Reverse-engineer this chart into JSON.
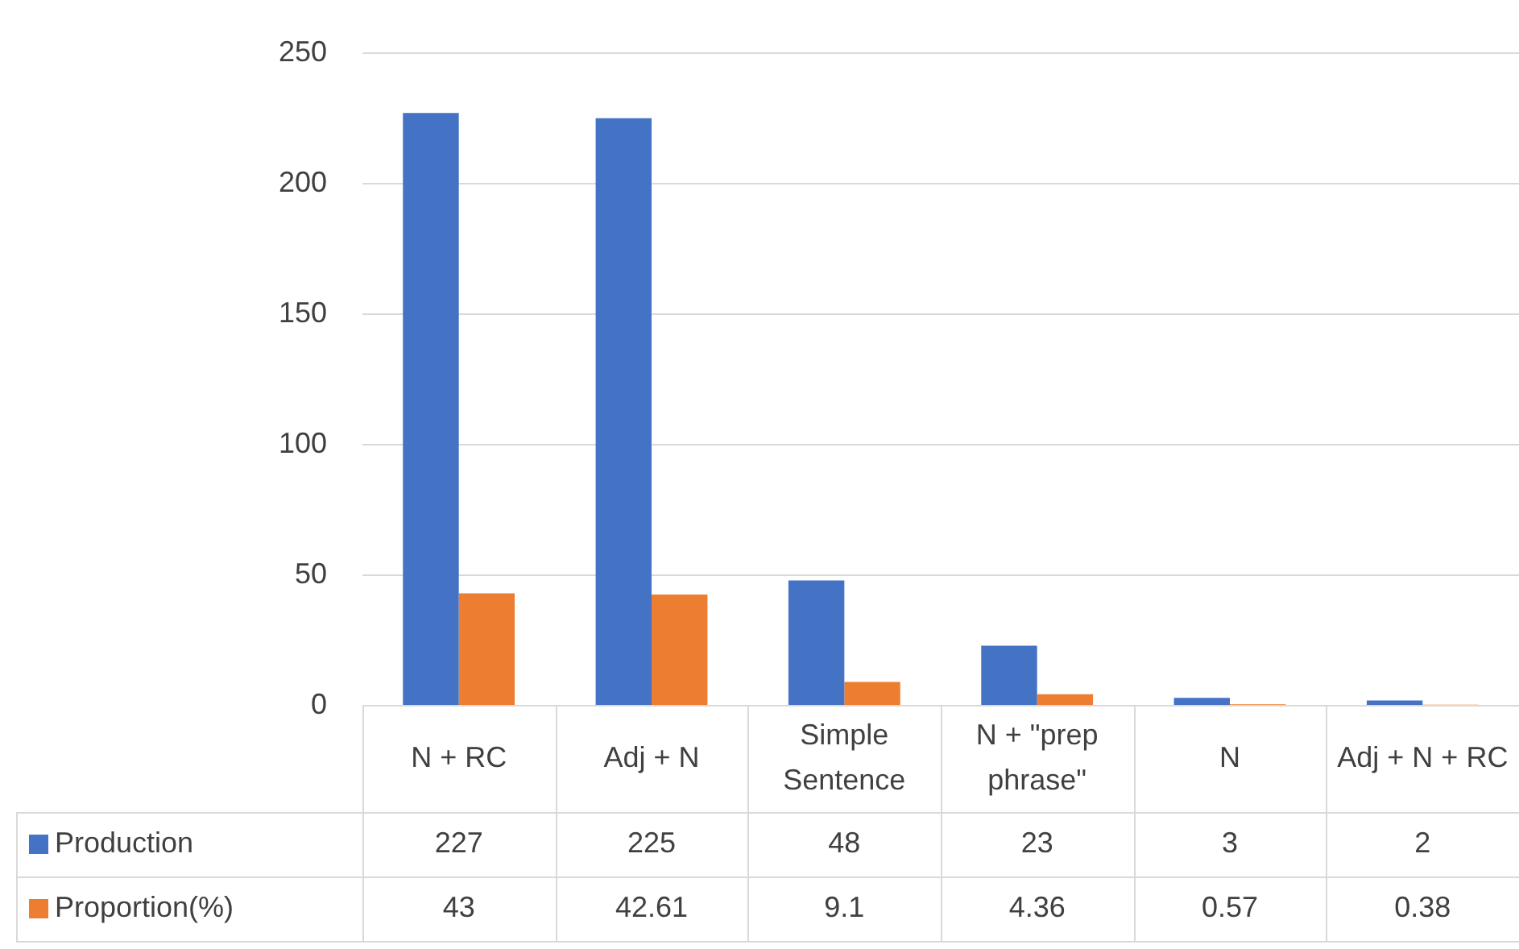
{
  "chart_data": {
    "type": "bar",
    "categories": [
      "N + RC",
      "Adj + N",
      "Simple Sentence",
      "N + \"prep phrase\"",
      "N",
      "Adj + N + RC"
    ],
    "series": [
      {
        "name": "Production",
        "color": "#4472c4",
        "values": [
          227,
          225,
          48,
          23,
          3,
          2
        ]
      },
      {
        "name": "Proportion(%)",
        "color": "#ed7d31",
        "values": [
          43,
          42.61,
          9.1,
          4.36,
          0.57,
          0.38
        ]
      }
    ],
    "ylim": [
      0,
      250
    ],
    "yticks": [
      0,
      50,
      100,
      150,
      200,
      250
    ],
    "grid": "y",
    "legend": "bottom",
    "data_labels": true
  }
}
